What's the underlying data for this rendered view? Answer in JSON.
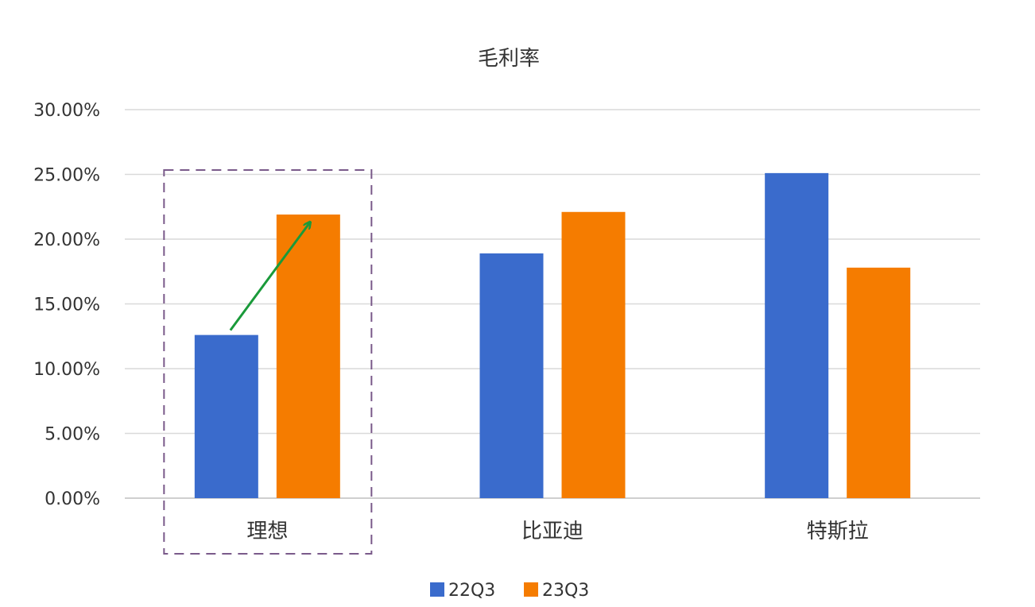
{
  "chart_data": {
    "type": "bar",
    "title": "毛利率",
    "categories": [
      "理想",
      "比亚迪",
      "特斯拉"
    ],
    "series": [
      {
        "name": "22Q3",
        "color": "#3a6bcc",
        "values": [
          12.6,
          18.9,
          25.1
        ]
      },
      {
        "name": "23Q3",
        "color": "#f57c00",
        "values": [
          21.9,
          22.1,
          17.8
        ]
      }
    ],
    "ylim": [
      0,
      30
    ],
    "yticks": [
      "0.00%",
      "5.00%",
      "10.00%",
      "15.00%",
      "20.00%",
      "25.00%",
      "30.00%"
    ],
    "grid": true,
    "legend": "bottom-center",
    "highlight": {
      "category": "理想",
      "arrow_color": "#1a9a3a",
      "box_color": "#7a5a8a"
    }
  }
}
